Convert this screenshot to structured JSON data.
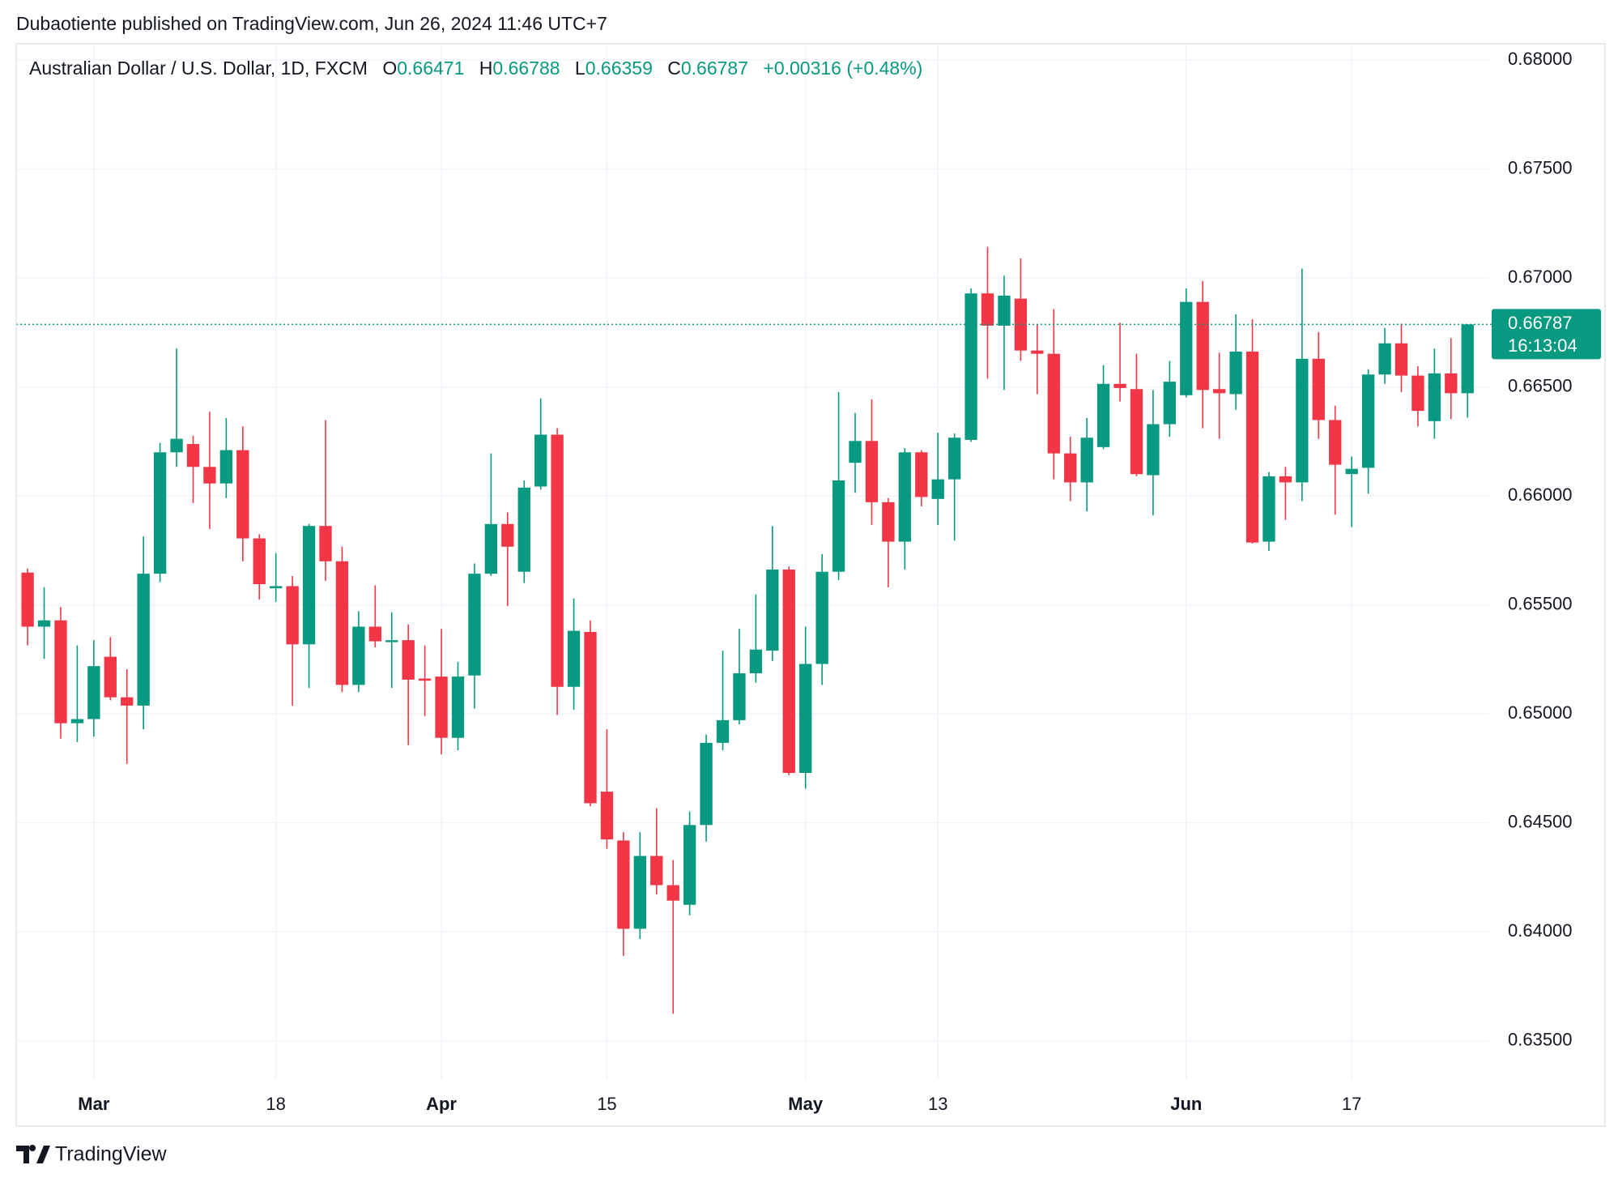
{
  "header": {
    "publisher": "Dubaotiente published on TradingView.com, Jun 26, 2024 11:46 UTC+7"
  },
  "chart_data": {
    "type": "candlestick",
    "title": "Australian Dollar / U.S. Dollar, 1D, FXCM",
    "ohlc_labels": [
      "O",
      "H",
      "L",
      "C"
    ],
    "change": "+0.00316 (+0.48%)",
    "countdown": "16:13:04",
    "categories": [
      null,
      null,
      null,
      null,
      "Mar",
      null,
      null,
      null,
      null,
      null,
      null,
      null,
      null,
      null,
      null,
      "18",
      null,
      null,
      null,
      null,
      null,
      null,
      null,
      null,
      null,
      "Apr",
      null,
      null,
      null,
      null,
      null,
      null,
      null,
      null,
      null,
      "15",
      null,
      null,
      null,
      null,
      null,
      null,
      null,
      null,
      null,
      null,
      null,
      "May",
      null,
      null,
      null,
      null,
      null,
      null,
      null,
      "13",
      null,
      null,
      null,
      null,
      null,
      null,
      null,
      null,
      null,
      null,
      null,
      null,
      null,
      null,
      "Jun",
      null,
      null,
      null,
      null,
      null,
      null,
      null,
      null,
      null,
      "17",
      null,
      null,
      null,
      null,
      null,
      null,
      null
    ],
    "open": [
      0.65648,
      0.654,
      0.65429,
      0.64957,
      0.64976,
      0.65262,
      0.65076,
      0.65038,
      0.65643,
      0.662,
      0.66238,
      0.66133,
      0.66057,
      0.6621,
      0.65805,
      0.65576,
      0.65586,
      0.65319,
      0.65862,
      0.657,
      0.65133,
      0.654,
      0.65329,
      0.65338,
      0.65162,
      0.65171,
      0.6489,
      0.65176,
      0.65643,
      0.65871,
      0.65652,
      0.66043,
      0.66281,
      0.65124,
      0.65376,
      0.64643,
      0.64419,
      0.64014,
      0.64348,
      0.64214,
      0.64124,
      0.6449,
      0.64867,
      0.64971,
      0.65186,
      0.6529,
      0.65662,
      0.64729,
      0.65229,
      0.65652,
      0.66152,
      0.66252,
      0.65971,
      0.6579,
      0.662,
      0.65986,
      0.66076,
      0.66257,
      0.66929,
      0.66781,
      0.66905,
      0.66667,
      0.66652,
      0.66195,
      0.66062,
      0.66224,
      0.66514,
      0.6649,
      0.66095,
      0.66329,
      0.66462,
      0.6689,
      0.6649,
      0.66467,
      0.66662,
      0.6579,
      0.6609,
      0.66062,
      0.66629,
      0.66348,
      0.661,
      0.66129,
      0.66557,
      0.667,
      0.66552,
      0.66343,
      0.66562,
      0.66471
    ],
    "high": [
      0.65667,
      0.65581,
      0.6549,
      0.65314,
      0.65338,
      0.65352,
      0.65205,
      0.65814,
      0.66243,
      0.66676,
      0.66276,
      0.66386,
      0.66357,
      0.66319,
      0.65824,
      0.65738,
      0.65633,
      0.65871,
      0.66348,
      0.65767,
      0.65471,
      0.6559,
      0.65467,
      0.6541,
      0.65314,
      0.6539,
      0.65238,
      0.6569,
      0.66195,
      0.65924,
      0.66071,
      0.66448,
      0.6631,
      0.65529,
      0.65429,
      0.64929,
      0.64457,
      0.64457,
      0.64567,
      0.64329,
      0.64552,
      0.64905,
      0.6529,
      0.6539,
      0.65548,
      0.65862,
      0.65676,
      0.654,
      0.65733,
      0.66476,
      0.66381,
      0.66443,
      0.6599,
      0.66219,
      0.6621,
      0.6629,
      0.66286,
      0.66952,
      0.67143,
      0.6701,
      0.6709,
      0.66786,
      0.66857,
      0.66271,
      0.66357,
      0.666,
      0.66795,
      0.66652,
      0.66486,
      0.66619,
      0.66952,
      0.66986,
      0.66657,
      0.66833,
      0.6681,
      0.6611,
      0.66133,
      0.67043,
      0.66752,
      0.66414,
      0.66181,
      0.66581,
      0.66771,
      0.6679,
      0.66595,
      0.66676,
      0.66724,
      0.66788
    ],
    "low": [
      0.65314,
      0.65252,
      0.64886,
      0.64871,
      0.64895,
      0.65062,
      0.64771,
      0.64929,
      0.65605,
      0.66133,
      0.65967,
      0.65848,
      0.6599,
      0.657,
      0.65524,
      0.65514,
      0.65038,
      0.65119,
      0.6561,
      0.651,
      0.651,
      0.65305,
      0.65119,
      0.64857,
      0.6499,
      0.64814,
      0.64833,
      0.65024,
      0.65633,
      0.65495,
      0.656,
      0.66029,
      0.64995,
      0.65019,
      0.64576,
      0.64381,
      0.6389,
      0.63967,
      0.64171,
      0.63624,
      0.64076,
      0.64414,
      0.64833,
      0.64952,
      0.65143,
      0.65243,
      0.64719,
      0.64657,
      0.65133,
      0.65614,
      0.66014,
      0.65867,
      0.65581,
      0.65662,
      0.65952,
      0.65867,
      0.65795,
      0.66248,
      0.66538,
      0.66486,
      0.66619,
      0.66467,
      0.66076,
      0.65976,
      0.65929,
      0.66214,
      0.66433,
      0.6609,
      0.6591,
      0.66271,
      0.66452,
      0.6631,
      0.66262,
      0.66395,
      0.65781,
      0.65748,
      0.6589,
      0.65976,
      0.66262,
      0.65914,
      0.65857,
      0.6601,
      0.66514,
      0.66476,
      0.66319,
      0.66262,
      0.66352,
      0.66359
    ],
    "close": [
      0.654,
      0.65429,
      0.64957,
      0.64976,
      0.65219,
      0.65076,
      0.65038,
      0.65643,
      0.662,
      0.66262,
      0.66133,
      0.66057,
      0.6621,
      0.65805,
      0.65595,
      0.65586,
      0.65319,
      0.65862,
      0.657,
      0.65133,
      0.654,
      0.65333,
      0.65338,
      0.65157,
      0.65152,
      0.6489,
      0.65171,
      0.65643,
      0.65871,
      0.65767,
      0.66038,
      0.66281,
      0.65124,
      0.65381,
      0.6459,
      0.64424,
      0.64014,
      0.64348,
      0.64214,
      0.64143,
      0.6449,
      0.64867,
      0.64971,
      0.65186,
      0.65295,
      0.65662,
      0.64729,
      0.65229,
      0.65652,
      0.66071,
      0.66252,
      0.65971,
      0.6579,
      0.662,
      0.65995,
      0.66076,
      0.66267,
      0.66929,
      0.66781,
      0.66919,
      0.66667,
      0.66652,
      0.66195,
      0.66062,
      0.66267,
      0.66514,
      0.66495,
      0.661,
      0.66329,
      0.66524,
      0.6689,
      0.66486,
      0.66471,
      0.66662,
      0.65786,
      0.6609,
      0.66062,
      0.66629,
      0.66348,
      0.66143,
      0.66124,
      0.66557,
      0.667,
      0.66552,
      0.6639,
      0.66562,
      0.66471,
      0.66787
    ],
    "up_color": "#089981",
    "down_color": "#f23645",
    "ylim": [
      0.63324,
      0.68067
    ],
    "yticks": [
      {
        "value": 0.635,
        "label": "0.63500"
      },
      {
        "value": 0.64,
        "label": "0.64000"
      },
      {
        "value": 0.645,
        "label": "0.64500"
      },
      {
        "value": 0.65,
        "label": "0.65000"
      },
      {
        "value": 0.655,
        "label": "0.65500"
      },
      {
        "value": 0.66,
        "label": "0.66000"
      },
      {
        "value": 0.665,
        "label": "0.66500"
      },
      {
        "value": 0.67,
        "label": "0.67000"
      },
      {
        "value": 0.675,
        "label": "0.67500"
      },
      {
        "value": 0.68,
        "label": "0.68000"
      }
    ],
    "grid": true
  },
  "footer": {
    "brand": "TradingView"
  }
}
